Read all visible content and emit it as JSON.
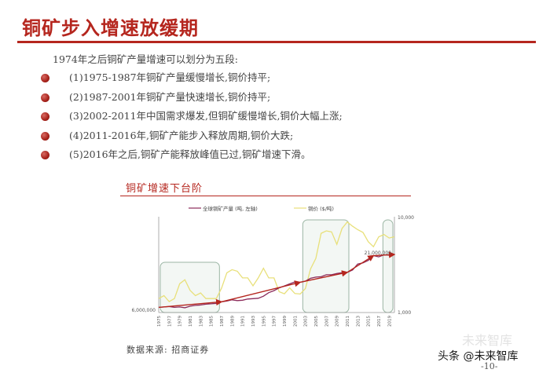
{
  "slide": {
    "title": "铜矿步入增速放缓期",
    "intro": "1974年之后铜矿产量增速可以划分为五段:",
    "bullets": [
      "(1)1975-1987年铜矿产量缓慢增长,铜价持平;",
      "(2)1987-2001年铜矿产量快速增长,铜价持平;",
      "(3)2002-2011年中国需求爆发,但铜矿缓慢增长,铜价大幅上涨;",
      "(4)2011-2016年,铜矿产能步入释放周期,铜价大跌;",
      "(5)2016年之后,铜矿产能释放峰值已过,铜矿增速下滑。"
    ],
    "chart_title": "铜矿增速下台阶",
    "source": "数据来源: 招商证券",
    "page_number": "-10-"
  },
  "watermark": {
    "main": "头条 @未来智库",
    "faint": "未来智库"
  },
  "colors": {
    "accent": "#b5261e",
    "output_line": "#8b2a5a",
    "price_line": "#e8e07a",
    "trend_arrow": "#b5261e",
    "box_fill": "#eef3ef",
    "box_stroke": "#9bb6a4"
  },
  "chart_data": {
    "type": "line",
    "legend": [
      "全球铜矿产量 (吨, 左轴)",
      "铜价 ($/吨)"
    ],
    "legend_position": "top",
    "x_tick_labels": [
      "1975",
      "1977",
      "1979",
      "1981",
      "1983",
      "1985",
      "1987",
      "1989",
      "1991",
      "1993",
      "1995",
      "1997",
      "1999",
      "2001",
      "2003",
      "2005",
      "2007",
      "2009",
      "2011",
      "2013",
      "2015",
      "2017",
      "2019"
    ],
    "left_axis_labels": [
      "6,000,000",
      "21,000,000"
    ],
    "right_axis_labels": [
      "10,000",
      "1,000"
    ],
    "right_axis_scale": "log",
    "x": [
      1975,
      1976,
      1977,
      1978,
      1979,
      1980,
      1981,
      1982,
      1983,
      1984,
      1985,
      1986,
      1987,
      1988,
      1989,
      1990,
      1991,
      1992,
      1993,
      1994,
      1995,
      1996,
      1997,
      1998,
      1999,
      2000,
      2001,
      2002,
      2003,
      2004,
      2005,
      2006,
      2007,
      2008,
      2009,
      2010,
      2011,
      2012,
      2013,
      2014,
      2015,
      2016,
      2017,
      2018,
      2019,
      2020
    ],
    "series": [
      {
        "name": "全球铜矿产量 (吨, 左轴)",
        "axis": "left",
        "values": [
          7300000,
          7400000,
          7500000,
          7300000,
          7400000,
          7200000,
          7600000,
          7800000,
          7900000,
          8100000,
          8200000,
          8300000,
          8700000,
          8900000,
          9200000,
          9000000,
          9100000,
          9400000,
          9500000,
          9600000,
          10100000,
          11000000,
          11500000,
          12200000,
          12700000,
          13200000,
          13700000,
          13600000,
          13900000,
          14600000,
          14900000,
          15000000,
          15500000,
          15500000,
          15800000,
          16000000,
          16100000,
          16700000,
          18200000,
          18500000,
          19100000,
          20300000,
          20000000,
          20500000,
          20400000,
          20600000
        ]
      },
      {
        "name": "铜价 ($/吨)",
        "axis": "right",
        "values": [
          1400,
          1500,
          1300,
          1400,
          2000,
          2200,
          1700,
          1500,
          1600,
          1400,
          1400,
          1400,
          1800,
          2600,
          2800,
          2700,
          2300,
          2300,
          1900,
          2300,
          2900,
          2300,
          2300,
          1650,
          1570,
          1810,
          1580,
          1560,
          1780,
          2860,
          3680,
          6720,
          7120,
          6950,
          5150,
          7540,
          8810,
          7960,
          7320,
          6860,
          5490,
          4860,
          6170,
          6530,
          6000,
          6180
        ]
      }
    ],
    "annotation": "21,000,000"
  }
}
